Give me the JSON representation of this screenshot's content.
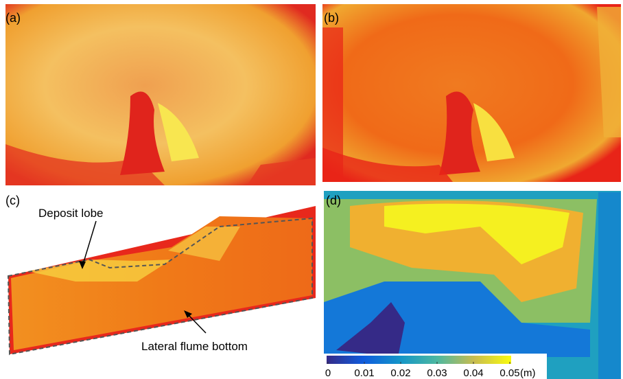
{
  "panels": [
    {
      "label": "(a)"
    },
    {
      "label": "(b)"
    },
    {
      "label": "(c)"
    },
    {
      "label": "(d)"
    }
  ],
  "annotations": {
    "deposit_lobe": "Deposit lobe",
    "lateral_flume_bottom": "Lateral flume bottom"
  },
  "colorbar": {
    "ticks": [
      0,
      0.01,
      0.02,
      0.03,
      0.04,
      0.05
    ],
    "unit": "(m)"
  }
}
